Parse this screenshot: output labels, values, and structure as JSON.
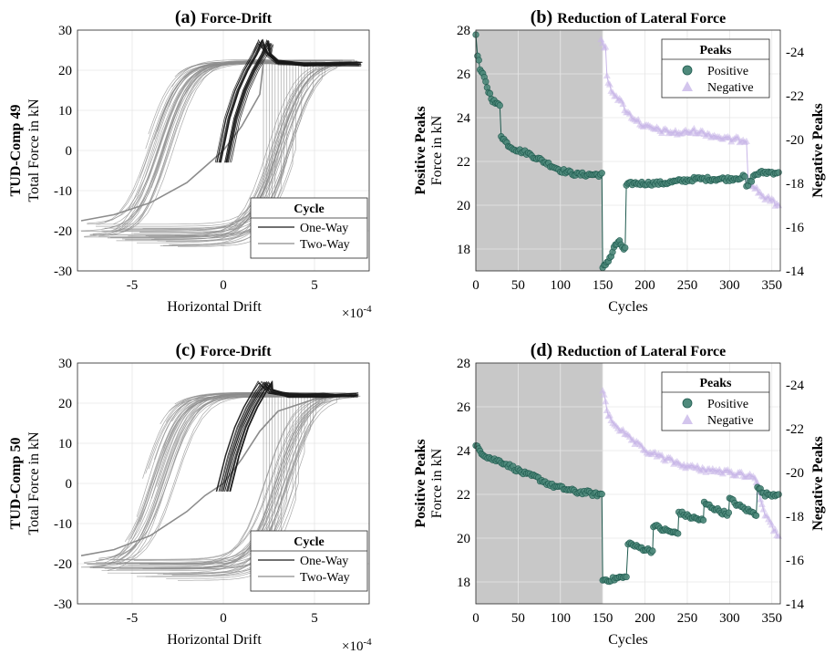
{
  "panels": [
    {
      "kind": "force-drift",
      "letter": "(a)",
      "title": "Force-Drift",
      "ylabel_bold": "TUD-Comp 49",
      "ylabel": "Total Force in kN",
      "xlabel": "Horizontal Drift",
      "x_multiplier": "×10",
      "x_exponent": "-4",
      "legend_title": "Cycle",
      "legend": [
        "One-Way",
        "Two-Way"
      ]
    },
    {
      "kind": "peaks",
      "letter": "(b)",
      "title": "Reduction of Lateral Force",
      "ylabel_bold": "Positive Peaks",
      "ylabel": "Force in kN",
      "ylabel_right": "Negative Peaks",
      "xlabel": "Cycles",
      "legend_title": "Peaks",
      "legend": [
        "Positive",
        "Negative"
      ]
    },
    {
      "kind": "force-drift",
      "letter": "(c)",
      "title": "Force-Drift",
      "ylabel_bold": "TUD-Comp 50",
      "ylabel": "Total Force in kN",
      "xlabel": "Horizontal Drift",
      "x_multiplier": "×10",
      "x_exponent": "-4",
      "legend_title": "Cycle",
      "legend": [
        "One-Way",
        "Two-Way"
      ]
    },
    {
      "kind": "peaks",
      "letter": "(d)",
      "title": "Reduction of Lateral Force",
      "ylabel_bold": "Positive Peaks",
      "ylabel": "Force in kN",
      "ylabel_right": "Negative Peaks",
      "xlabel": "Cycles",
      "legend_title": "Peaks",
      "legend": [
        "Positive",
        "Negative"
      ]
    }
  ],
  "colors": {
    "one_way": "#1a1a1a",
    "two_way": "#8c8c8c",
    "positive": "#1e5a4e",
    "positive_fill": "#4f8a7c",
    "negative": "#c8b6e8",
    "shade": "#c8c8c8",
    "grid": "#e6e6e6"
  },
  "chart_data": [
    {
      "type": "line",
      "panel": "a",
      "xlim": [
        -8,
        8
      ],
      "ylim": [
        -30,
        30
      ],
      "x_scale": 0.0001,
      "xticks": [
        -5,
        0,
        5
      ],
      "yticks": [
        -30,
        -20,
        -10,
        0,
        10,
        20,
        30
      ],
      "grid": true,
      "legend_position": "bottom-right",
      "series": [
        {
          "name": "One-Way",
          "x": [
            0,
            0.5,
            1.0,
            1.5,
            2.0,
            2.3,
            2.5,
            3.0,
            4.5,
            7.5
          ],
          "y": [
            -3,
            8,
            15,
            20,
            24,
            27,
            24,
            22,
            21.5,
            21.5
          ]
        },
        {
          "name": "Two-Way",
          "x": [
            -7.8,
            -6,
            -4,
            -2,
            -1,
            0,
            1,
            2,
            2.2,
            3,
            5,
            7.5
          ],
          "y": [
            -17.5,
            -16,
            -13,
            -8,
            -4,
            0,
            6,
            14,
            22,
            21.5,
            21.5,
            21.5
          ]
        }
      ]
    },
    {
      "type": "scatter",
      "panel": "b",
      "xlim": [
        0,
        360
      ],
      "ylim": [
        17,
        28
      ],
      "ylim_right": [
        -14,
        -25
      ],
      "xticks": [
        0,
        50,
        100,
        150,
        200,
        250,
        300,
        350
      ],
      "yticks": [
        18,
        20,
        22,
        24,
        26,
        28
      ],
      "yticks_right": [
        -14,
        -16,
        -18,
        -20,
        -22,
        -24
      ],
      "shaded_x": [
        0,
        150
      ],
      "grid": true,
      "legend_position": "top-right",
      "series": [
        {
          "name": "Positive",
          "axis": "left",
          "x": [
            0,
            2,
            5,
            10,
            15,
            20,
            25,
            30,
            35,
            40,
            50,
            60,
            70,
            80,
            90,
            100,
            110,
            120,
            130,
            140,
            149,
            150,
            155,
            160,
            165,
            170,
            175,
            178,
            185,
            200,
            210,
            220,
            240,
            260,
            280,
            300,
            318,
            320,
            330,
            340,
            358
          ],
          "y": [
            27.8,
            26.9,
            26.2,
            25.8,
            25.2,
            24.8,
            24.6,
            23.2,
            22.9,
            22.7,
            22.5,
            22.4,
            22.2,
            22.0,
            21.8,
            21.6,
            21.5,
            21.4,
            21.4,
            21.4,
            21.4,
            17.1,
            17.4,
            17.7,
            18.2,
            18.3,
            18.0,
            20.9,
            21.0,
            21.0,
            21.0,
            21.0,
            21.1,
            21.2,
            21.2,
            21.2,
            21.3,
            20.8,
            21.4,
            21.5,
            21.5
          ]
        },
        {
          "name": "Negative",
          "axis": "right",
          "x": [
            148,
            150,
            155,
            160,
            170,
            180,
            200,
            220,
            240,
            260,
            280,
            300,
            318,
            322,
            330,
            340,
            350,
            358
          ],
          "y": [
            -24.6,
            -24.3,
            -22.8,
            -22.3,
            -21.8,
            -21.2,
            -20.6,
            -20.4,
            -20.3,
            -20.4,
            -20.2,
            -20.0,
            -20.0,
            -18.2,
            -17.8,
            -17.4,
            -17.2,
            -17.0
          ]
        }
      ]
    },
    {
      "type": "line",
      "panel": "c",
      "xlim": [
        -8,
        8
      ],
      "ylim": [
        -30,
        30
      ],
      "x_scale": 0.0001,
      "xticks": [
        -5,
        0,
        5
      ],
      "yticks": [
        -30,
        -20,
        -10,
        0,
        10,
        20,
        30
      ],
      "grid": true,
      "legend_position": "bottom-right",
      "series": [
        {
          "name": "One-Way",
          "x": [
            0,
            0.5,
            1.0,
            1.5,
            2.0,
            2.3,
            2.6,
            3.5,
            5.5,
            7.3
          ],
          "y": [
            -2,
            7,
            14,
            19,
            23,
            25,
            23,
            22,
            22,
            22
          ]
        },
        {
          "name": "Two-Way",
          "x": [
            -7.8,
            -6,
            -4,
            -2,
            -1,
            0,
            1,
            2,
            3,
            5,
            7.3
          ],
          "y": [
            -18,
            -16.5,
            -13,
            -7,
            -3,
            0,
            6,
            13,
            18,
            21,
            22
          ]
        }
      ]
    },
    {
      "type": "scatter",
      "panel": "d",
      "xlim": [
        0,
        360
      ],
      "ylim": [
        17,
        28
      ],
      "ylim_right": [
        -14,
        -25
      ],
      "xticks": [
        0,
        50,
        100,
        150,
        200,
        250,
        300,
        350
      ],
      "yticks": [
        18,
        20,
        22,
        24,
        26,
        28
      ],
      "yticks_right": [
        -14,
        -16,
        -18,
        -20,
        -22,
        -24
      ],
      "shaded_x": [
        0,
        150
      ],
      "grid": true,
      "legend_position": "top-right",
      "series": [
        {
          "name": "Positive",
          "axis": "left",
          "x": [
            0,
            5,
            10,
            20,
            30,
            40,
            50,
            60,
            70,
            80,
            90,
            100,
            110,
            120,
            130,
            140,
            149,
            150,
            160,
            170,
            178,
            180,
            190,
            200,
            209,
            210,
            220,
            230,
            239,
            240,
            250,
            260,
            269,
            270,
            280,
            290,
            299,
            300,
            310,
            320,
            330,
            333,
            340,
            350,
            358
          ],
          "y": [
            24.2,
            24.0,
            23.8,
            23.6,
            23.5,
            23.3,
            23.1,
            22.9,
            22.8,
            22.6,
            22.4,
            22.3,
            22.2,
            22.1,
            22.1,
            22.0,
            22.0,
            18.1,
            18.1,
            18.2,
            18.2,
            19.8,
            19.6,
            19.5,
            19.4,
            20.6,
            20.4,
            20.3,
            20.2,
            21.2,
            21.0,
            20.9,
            20.8,
            21.6,
            21.4,
            21.2,
            21.1,
            21.8,
            21.5,
            21.3,
            21.1,
            22.4,
            22.0,
            22.0,
            22.0
          ]
        },
        {
          "name": "Negative",
          "axis": "right",
          "x": [
            150,
            155,
            160,
            170,
            180,
            200,
            220,
            240,
            260,
            280,
            300,
            320,
            330,
            333,
            340,
            350,
            358
          ],
          "y": [
            -23.8,
            -22.8,
            -22.4,
            -22.0,
            -21.6,
            -21.0,
            -20.7,
            -20.4,
            -20.2,
            -20.1,
            -20.0,
            -19.9,
            -19.8,
            -19.4,
            -18.3,
            -17.5,
            -17.1
          ]
        }
      ]
    }
  ]
}
